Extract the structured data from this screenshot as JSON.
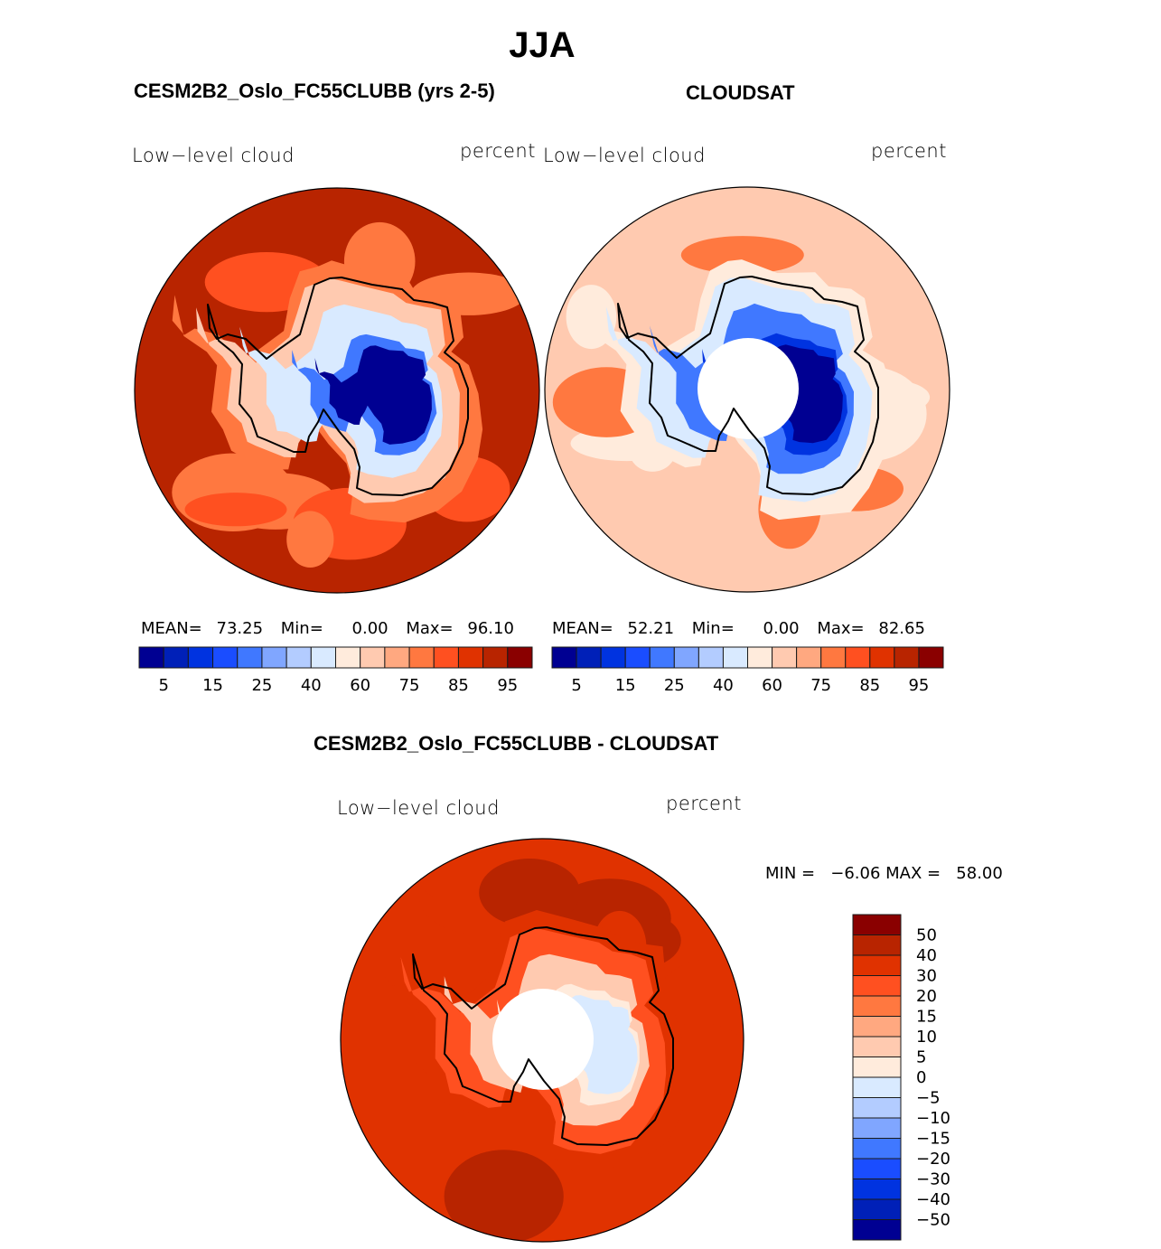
{
  "chart_data": {
    "type": "heatmap",
    "projection": "south-polar-stereographic",
    "title": "JJA",
    "variable": "Low-level cloud",
    "units": "percent",
    "panels": [
      {
        "id": "model",
        "title": "CESM2B2_Oslo_FC55CLUBB (yrs 2-5)",
        "left_label": "Low−level cloud",
        "right_label": "percent",
        "stats": {
          "mean_label": "MEAN=",
          "mean": "73.25",
          "min_label": "Min=",
          "min": "0.00",
          "max_label": "Max=",
          "max": "96.10"
        },
        "has_polar_hole": false,
        "fields": {
          "ocean": 90,
          "outer_patch": 80,
          "coast_ring": 60,
          "inner_ring": 40,
          "interior": 2
        }
      },
      {
        "id": "obs",
        "title": "CLOUDSAT",
        "left_label": "Low−level cloud",
        "right_label": "percent",
        "stats": {
          "mean_label": "MEAN=",
          "mean": "52.21",
          "min_label": "Min=",
          "min": "0.00",
          "max_label": "Max=",
          "max": "82.65"
        },
        "has_polar_hole": true,
        "fields": {
          "ocean": 65,
          "outer_patch": 75,
          "coast_ring": 45,
          "inner_ring": 20,
          "interior": 2
        }
      },
      {
        "id": "diff",
        "title": "CESM2B2_Oslo_FC55CLUBB - CLOUDSAT",
        "left_label": "Low−level cloud",
        "right_label": "percent",
        "stats_text": "MIN =   −6.06 MAX =   58.00",
        "min": -6.06,
        "max": 58.0,
        "has_polar_hole": true,
        "fields": {
          "ocean": 35,
          "outer_patch": 45,
          "coast_ring": 25,
          "inner_ring": 8,
          "interior": -3
        }
      }
    ],
    "colorbar_abs": {
      "orientation": "horizontal",
      "levels": [
        5,
        10,
        15,
        20,
        25,
        30,
        40,
        50,
        60,
        70,
        75,
        80,
        85,
        90,
        95
      ],
      "tick_labels": [
        "5",
        "15",
        "25",
        "40",
        "60",
        "75",
        "85",
        "95"
      ],
      "colors": [
        "#000092",
        "#0020b8",
        "#0033e0",
        "#1a4dff",
        "#4078ff",
        "#80a6ff",
        "#b3ccff",
        "#d9eaff",
        "#ffebdc",
        "#ffcab0",
        "#ffa880",
        "#ff7840",
        "#ff5020",
        "#e03200",
        "#b82400",
        "#8a0000"
      ]
    },
    "colorbar_diff": {
      "orientation": "vertical",
      "levels": [
        -50,
        -40,
        -30,
        -20,
        -15,
        -10,
        -5,
        0,
        5,
        10,
        15,
        20,
        30,
        40,
        50
      ],
      "tick_labels": [
        "50",
        "40",
        "30",
        "20",
        "15",
        "10",
        "5",
        "0",
        "−5",
        "−10",
        "−15",
        "−20",
        "−30",
        "−40",
        "−50"
      ],
      "colors": [
        "#000092",
        "#0020b8",
        "#0033e0",
        "#1a4dff",
        "#4078ff",
        "#80a6ff",
        "#b3ccff",
        "#d9eaff",
        "#ffebdc",
        "#ffcab0",
        "#ffa880",
        "#ff7840",
        "#ff5020",
        "#e03200",
        "#b82400",
        "#8a0000"
      ]
    }
  }
}
